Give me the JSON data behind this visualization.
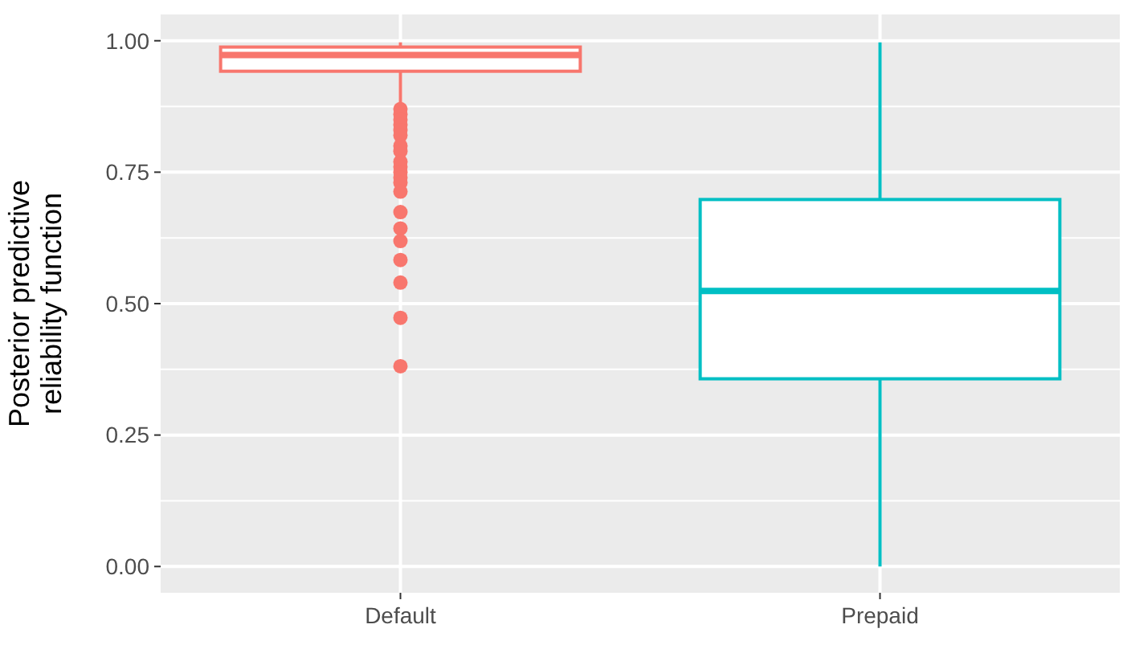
{
  "chart_data": {
    "type": "box",
    "ylabel": "Posterior predictive\nreliability function",
    "categories": [
      "Default",
      "Prepaid"
    ],
    "series": [
      {
        "colors": [
          "#f8766d",
          "#00bfc4"
        ],
        "boxes": [
          {
            "low": 0.875,
            "q1": 0.942,
            "median": 0.973,
            "q3": 0.988,
            "high": 0.997,
            "outliers": [
              0.87,
              0.86,
              0.85,
              0.84,
              0.83,
              0.82,
              0.8,
              0.79,
              0.77,
              0.76,
              0.75,
              0.74,
              0.73,
              0.713,
              0.674,
              0.643,
              0.619,
              0.583,
              0.54,
              0.473,
              0.381
            ]
          },
          {
            "low": 0.0,
            "q1": 0.357,
            "median": 0.524,
            "q3": 0.698,
            "high": 0.997
          }
        ]
      }
    ],
    "ylim": [
      -0.05,
      1.05
    ],
    "yticks": [
      {
        "value": 0,
        "label": "0.00"
      },
      {
        "value": 0.25,
        "label": "0.25"
      },
      {
        "value": 0.5,
        "label": "0.50"
      },
      {
        "value": 0.75,
        "label": "0.75"
      },
      {
        "value": 1,
        "label": "1.00"
      }
    ],
    "grid": true
  }
}
